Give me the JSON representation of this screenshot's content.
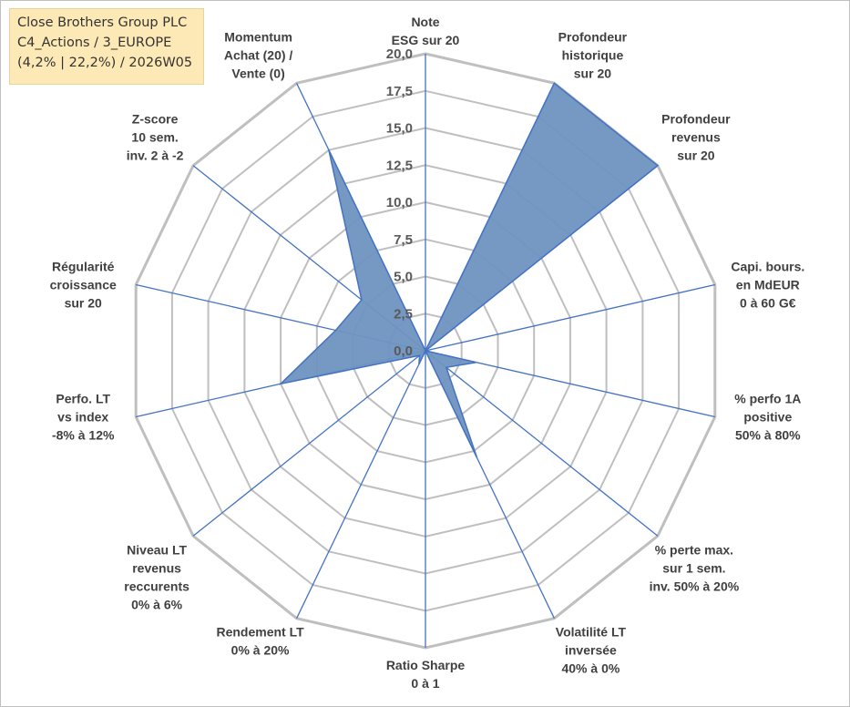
{
  "header": {
    "lines": [
      "Close Brothers Group PLC",
      "C4_Actions / 3_EUROPE",
      "(4,2% | 22,2%) / 2026W05"
    ]
  },
  "chart_data": {
    "type": "radar",
    "rmin": 0,
    "rmax": 20,
    "ticks": [
      "0,0",
      "2,5",
      "5,0",
      "7,5",
      "10,0",
      "12,5",
      "15,0",
      "17,5",
      "20,0"
    ],
    "grid": true,
    "fill_color": "#6f93c0",
    "line_color": "#4472c4",
    "grid_color": "#bfbfbf",
    "axis_line_color": "#4472c4",
    "axes": [
      {
        "label": [
          "Note",
          "ESG sur 20"
        ],
        "value": 0
      },
      {
        "label": [
          "Profondeur",
          "historique",
          "sur 20"
        ],
        "value": 20
      },
      {
        "label": [
          "Profondeur",
          "revenus",
          "sur 20"
        ],
        "value": 20
      },
      {
        "label": [
          "Capi. bours.",
          "en MdEUR",
          "0 à 60 G€"
        ],
        "value": 0
      },
      {
        "label": [
          "% perfo 1A",
          "positive",
          "50% à 80%"
        ],
        "value": 3.5
      },
      {
        "label": [
          "% perte max.",
          "sur 1 sem.",
          "inv. 50% à 20%"
        ],
        "value": 1.8
      },
      {
        "label": [
          "Volatilité LT",
          "inversée",
          "40% à 0%"
        ],
        "value": 8.0
      },
      {
        "label": [
          "Ratio Sharpe",
          "0 à 1"
        ],
        "value": 0
      },
      {
        "label": [
          "Rendement LT",
          "0% à 20%"
        ],
        "value": 1.0
      },
      {
        "label": [
          "Niveau LT",
          "revenus",
          "reccurents",
          "0% à 6%"
        ],
        "value": 0.5
      },
      {
        "label": [
          "Perfo. LT",
          "vs index",
          "-8% à 12%"
        ],
        "value": 10.0
      },
      {
        "label": [
          "Régularité",
          "croissance",
          "sur 20"
        ],
        "value": 6.2
      },
      {
        "label": [
          "Z-score",
          "10 sem.",
          "inv. 2 à -2"
        ],
        "value": 5.5
      },
      {
        "label": [
          "Momentum",
          "Achat (20) /",
          "Vente (0)"
        ],
        "value": 15.0
      }
    ]
  }
}
